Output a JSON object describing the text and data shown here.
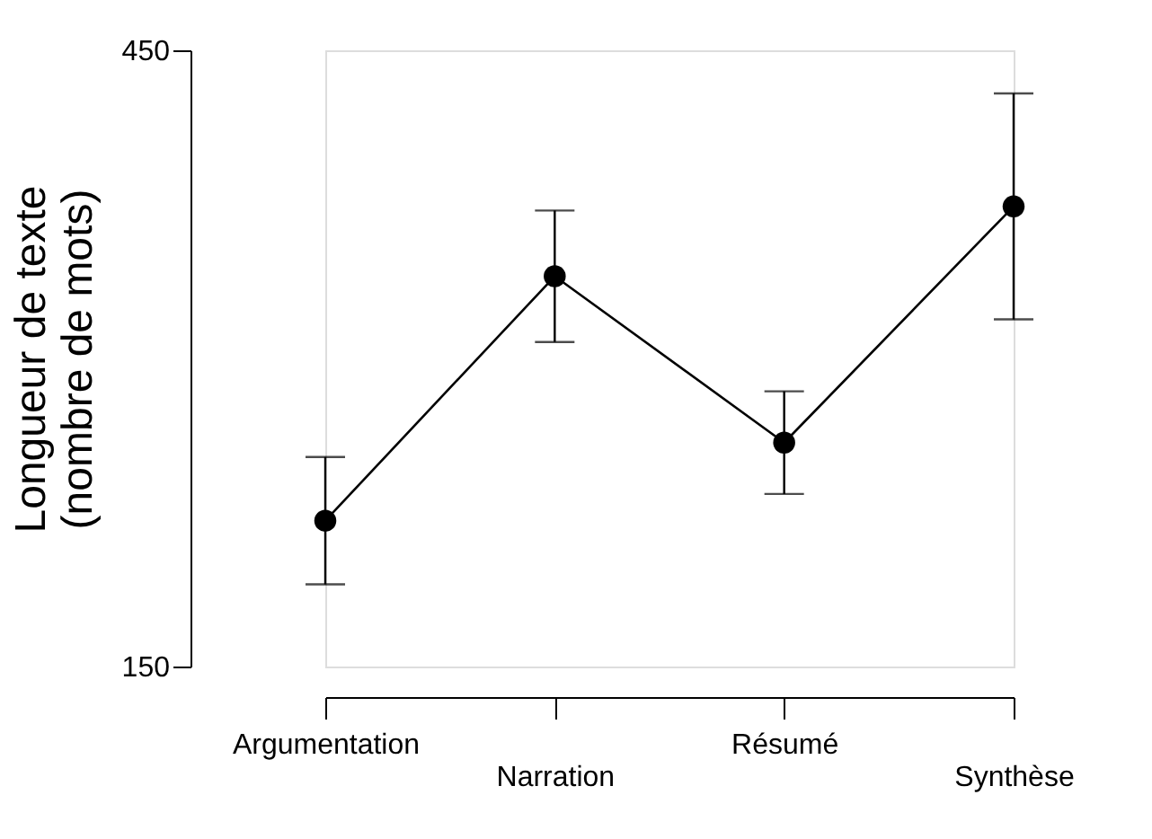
{
  "chart_data": {
    "type": "line",
    "ylabel": "Longueur de texte\n(nombre de mots)",
    "categories": [
      "Argumentation",
      "Narration",
      "Résumé",
      "Synthèse"
    ],
    "values": [
      221,
      340,
      259,
      374
    ],
    "errors": [
      31,
      32,
      25,
      55
    ],
    "color": "#000000",
    "marker": "circle",
    "line_style": "solid",
    "grid": false,
    "ylim": [
      150,
      450
    ],
    "yticks": [
      150,
      450
    ]
  }
}
